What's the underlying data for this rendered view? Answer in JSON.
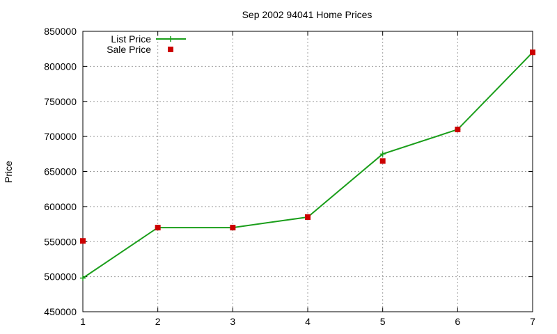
{
  "chart_data": {
    "type": "line",
    "title": "Sep 2002 94041 Home Prices",
    "xlabel": "",
    "ylabel": "Price",
    "x": [
      1,
      2,
      3,
      4,
      5,
      6,
      7
    ],
    "xlim": [
      1,
      7
    ],
    "ylim": [
      450000,
      850000
    ],
    "x_ticks": [
      "1",
      "2",
      "3",
      "4",
      "5",
      "6",
      "7"
    ],
    "y_ticks": [
      "450000",
      "500000",
      "550000",
      "600000",
      "650000",
      "700000",
      "750000",
      "800000",
      "850000"
    ],
    "grid": true,
    "legend_position": "top-left",
    "series": [
      {
        "name": "List Price",
        "style": "line+cross",
        "color": "#1a9e1a",
        "values": [
          498000,
          570000,
          570000,
          585000,
          675000,
          710000,
          820000
        ]
      },
      {
        "name": "Sale Price",
        "style": "square-markers",
        "color": "#cc0000",
        "values": [
          551000,
          570000,
          570000,
          585000,
          665000,
          710000,
          820000
        ]
      }
    ]
  }
}
